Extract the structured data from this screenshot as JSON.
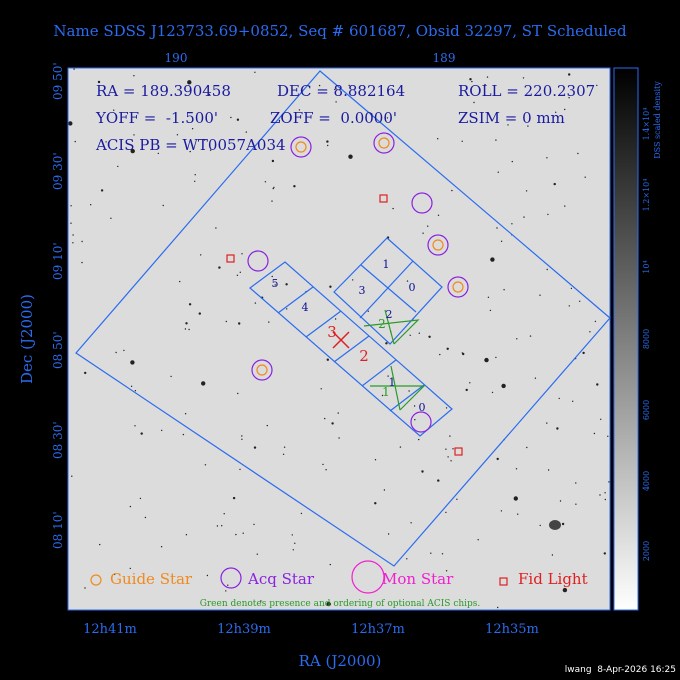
{
  "title": "Name SDSS J123733.69+0852, Seq # 601687, Obsid 32297, ST Scheduled",
  "info": {
    "ra": "RA = 189.390458",
    "dec": "DEC = 8.882164",
    "roll": "ROLL = 220.2307",
    "yoff": "YOFF =  -1.500'",
    "zoff": "ZOFF =  0.0000'",
    "zsim": "ZSIM = 0 mm",
    "acis_pb": "ACIS PB = WT0057A034"
  },
  "axes": {
    "top_ticks": [
      "190",
      "189"
    ],
    "left_ticks": [
      "09 50'",
      "09 30'",
      "09 10'",
      "08 50'",
      "08 30'",
      "08 10'"
    ],
    "bottom_ticks": [
      "12h41m",
      "12h39m",
      "12h37m",
      "12h35m"
    ],
    "xlabel": "RA (J2000)",
    "ylabel": "Dec (J2000)"
  },
  "colorbar": {
    "label": "DSS scaled density",
    "ticks": [
      "2000",
      "4000",
      "6000",
      "8000",
      "10⁴",
      "1.2×10⁴",
      "1.4×10⁴"
    ]
  },
  "chips": {
    "s_chips": [
      "5",
      "4",
      "3",
      "2",
      "1",
      "0"
    ],
    "i_chips": [
      "1",
      "0",
      "3",
      "2"
    ],
    "optional": [
      "2",
      "1"
    ]
  },
  "legend": {
    "guide": "Guide Star",
    "acq": "Acq Star",
    "mon": "Mon Star",
    "fid": "Fid Light",
    "note": "Green denotes presence and ordering of optional ACIS chips."
  },
  "footer": "lwang  8-Apr-2026 16:25",
  "colors": {
    "blue": "#2a6cf0",
    "purple": "#8a22e0",
    "orange": "#f08a1e",
    "red": "#e02020",
    "magenta": "#f020d0",
    "green": "#2a9a2a"
  }
}
